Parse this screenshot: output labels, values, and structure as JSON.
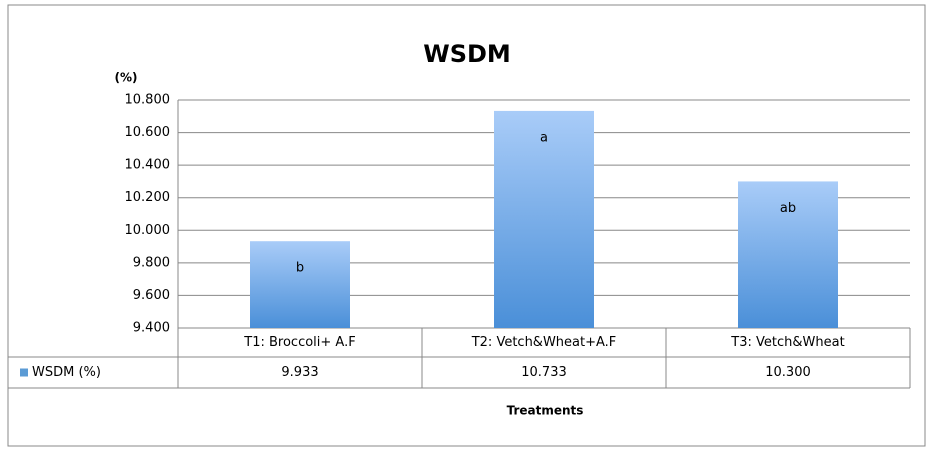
{
  "chart_data": {
    "type": "bar",
    "title": "WSDM",
    "y_label": "(%)",
    "x_label": "Treatments",
    "categories": [
      "T1: Broccoli+ A.F",
      "T2: Vetch&Wheat+A.F",
      "T3: Vetch&Wheat"
    ],
    "series": [
      {
        "name": "WSDM (%)",
        "color": "#5b9bd5",
        "values": [
          9.933,
          10.733,
          10.3
        ],
        "value_labels": [
          "9.933",
          "10.733",
          "10.300"
        ]
      }
    ],
    "annotations": [
      "b",
      "a",
      "ab"
    ],
    "ylim": [
      9.4,
      10.8
    ],
    "yticks": [
      {
        "value": 9.4,
        "label": "9.400"
      },
      {
        "value": 9.6,
        "label": "9.600"
      },
      {
        "value": 9.8,
        "label": "9.800"
      },
      {
        "value": 10.0,
        "label": "10.000"
      },
      {
        "value": 10.2,
        "label": "10.200"
      },
      {
        "value": 10.4,
        "label": "10.400"
      },
      {
        "value": 10.6,
        "label": "10.600"
      },
      {
        "value": 10.8,
        "label": "10.800"
      }
    ],
    "grid": true
  }
}
